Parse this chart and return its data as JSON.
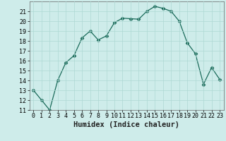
{
  "x": [
    0,
    1,
    2,
    3,
    4,
    5,
    6,
    7,
    8,
    9,
    10,
    11,
    12,
    13,
    14,
    15,
    16,
    17,
    18,
    19,
    20,
    21,
    22,
    23
  ],
  "y": [
    13,
    12,
    11,
    14,
    15.8,
    16.5,
    18.3,
    19,
    18.1,
    18.5,
    19.85,
    20.3,
    20.25,
    20.2,
    21.0,
    21.5,
    21.3,
    21.0,
    20.0,
    17.8,
    16.7,
    13.6,
    15.3,
    14.1
  ],
  "line_color": "#1a6b5a",
  "marker": "D",
  "marker_size": 2.5,
  "bg_color": "#ceecea",
  "grid_color": "#aed8d4",
  "xlabel": "Humidex (Indice chaleur)",
  "ylim": [
    11,
    22
  ],
  "xlim": [
    -0.5,
    23.5
  ],
  "yticks": [
    11,
    12,
    13,
    14,
    15,
    16,
    17,
    18,
    19,
    20,
    21
  ],
  "xticks": [
    0,
    1,
    2,
    3,
    4,
    5,
    6,
    7,
    8,
    9,
    10,
    11,
    12,
    13,
    14,
    15,
    16,
    17,
    18,
    19,
    20,
    21,
    22,
    23
  ],
  "xlabel_fontsize": 7.5,
  "tick_fontsize": 6.0
}
